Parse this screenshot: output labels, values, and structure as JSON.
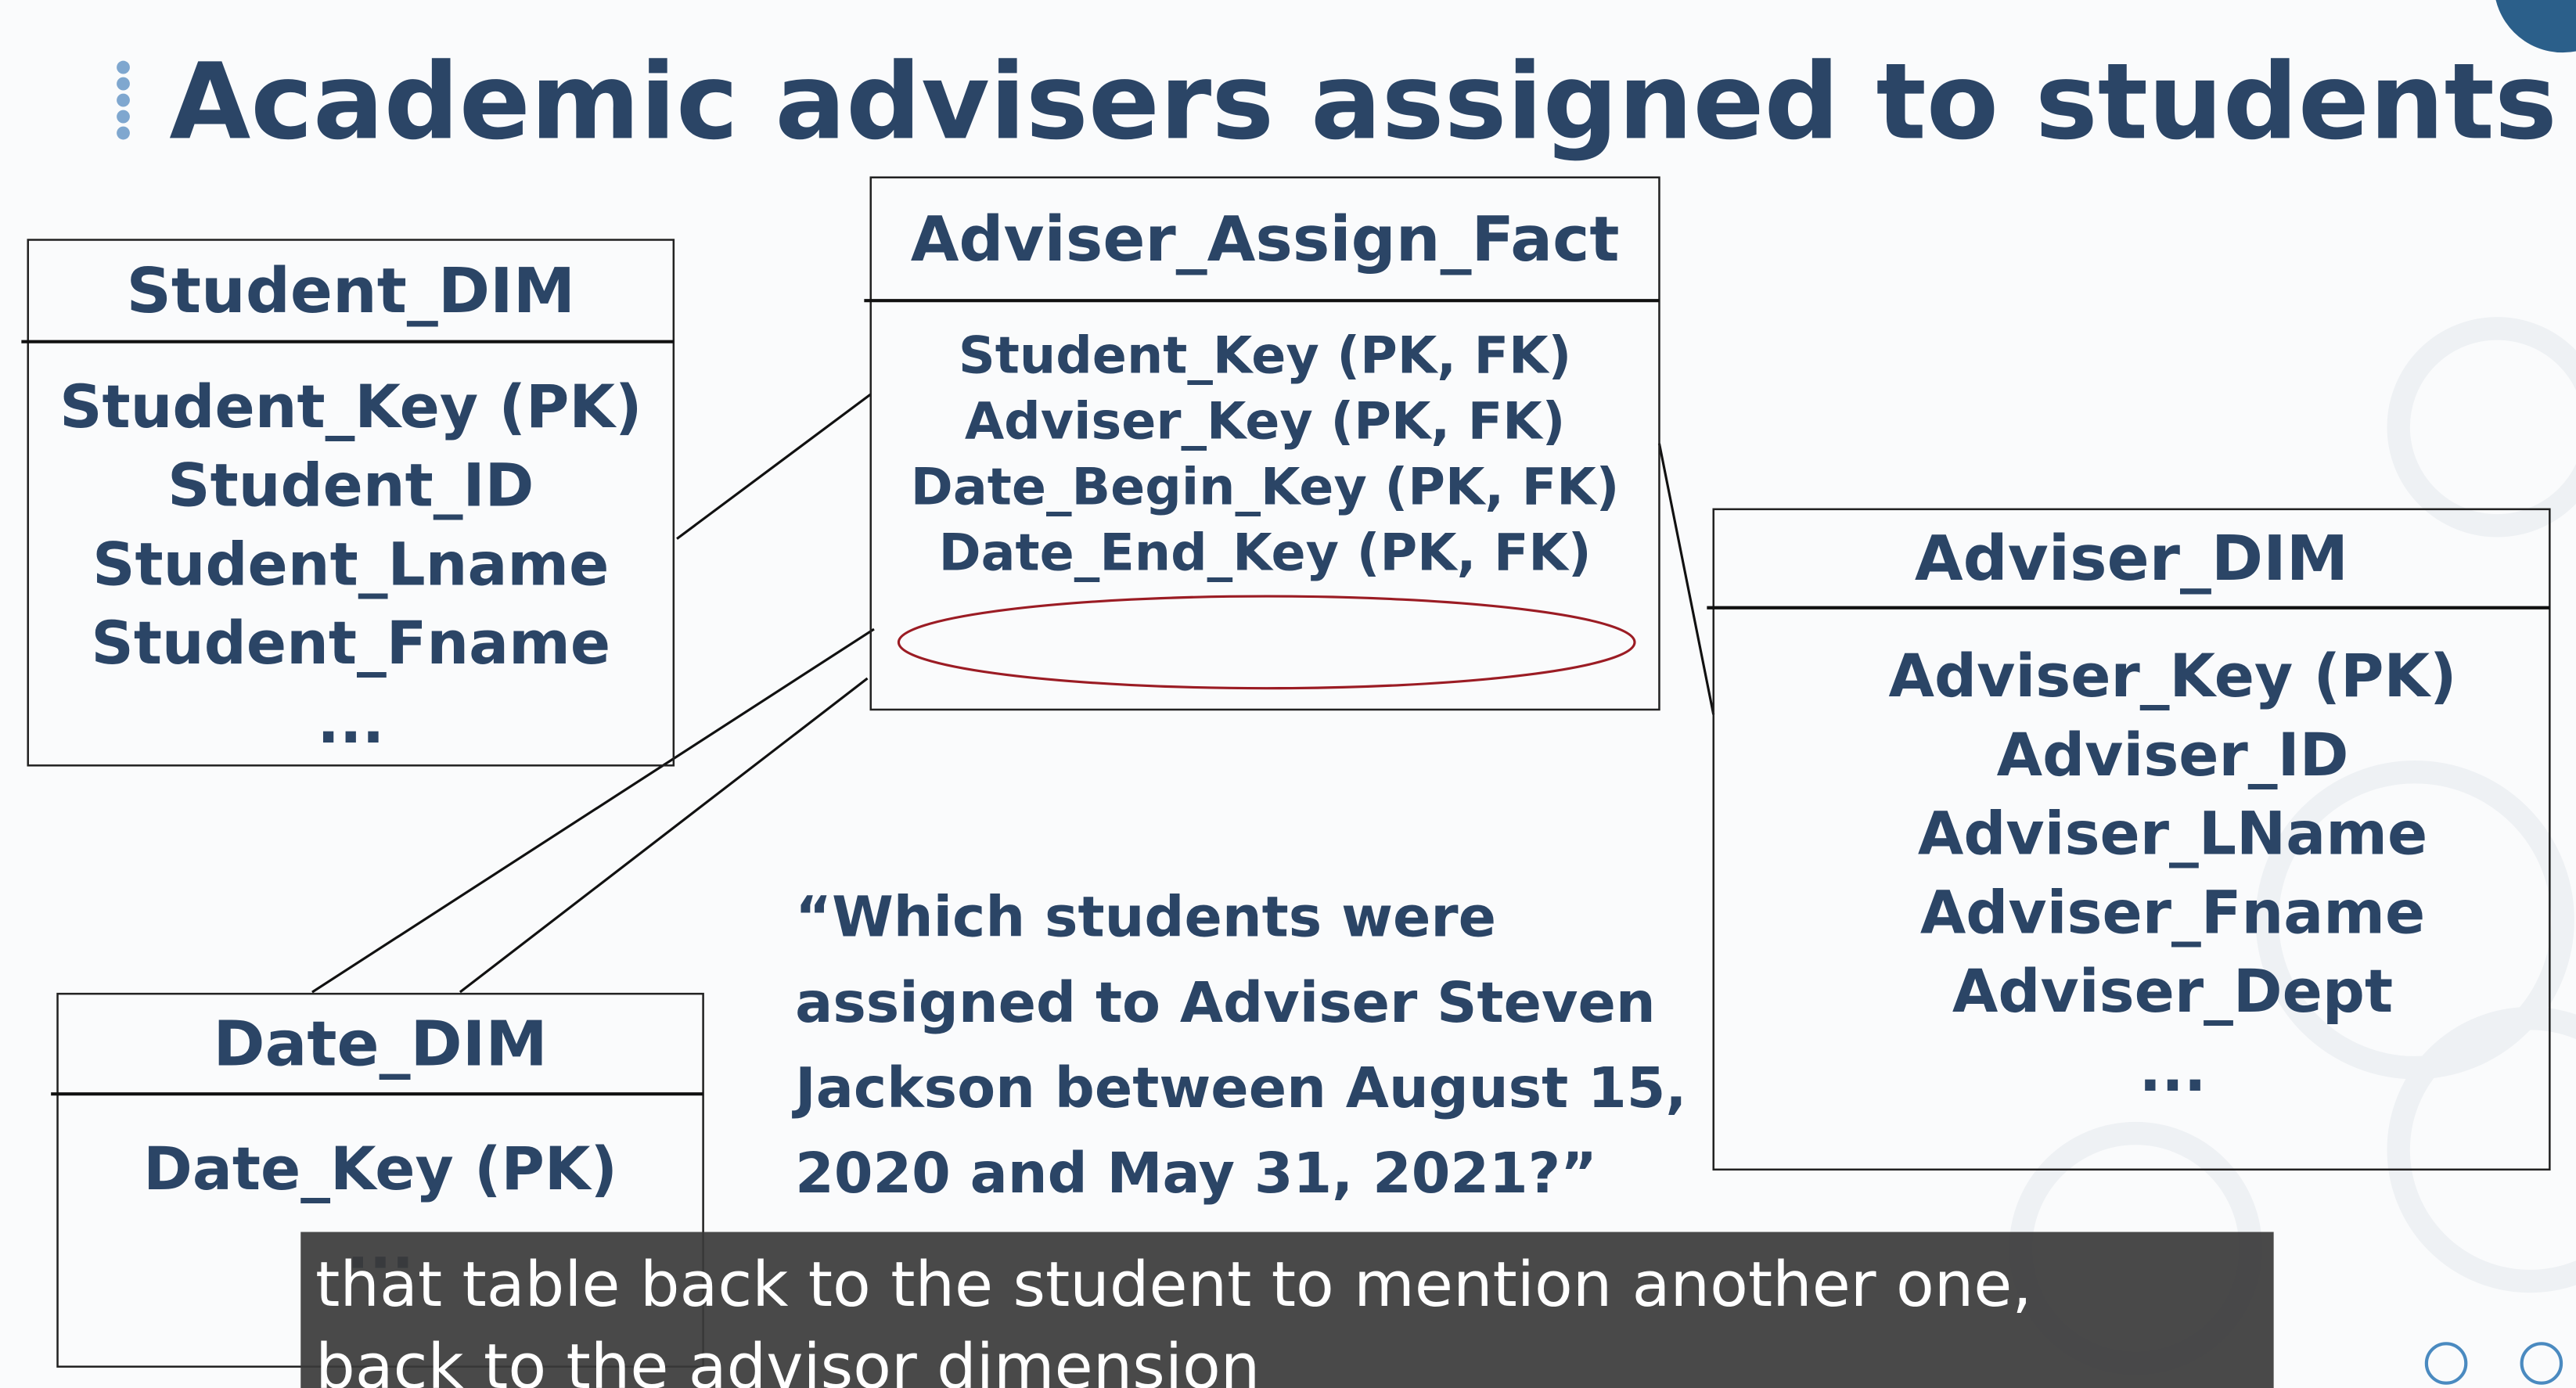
{
  "header": {
    "title": "Academic advisers assigned to students"
  },
  "tables": [
    {
      "name": "Student_DIM",
      "fields": [
        "Student_Key (PK)",
        "Student_ID",
        "Student_Lname",
        "Student_Fname",
        "..."
      ]
    },
    {
      "name": "Adviser_Assign_Fact",
      "fields": [
        "Student_Key (PK, FK)",
        "Adviser_Key (PK, FK)",
        "Date_Begin_Key (PK, FK)",
        "Date_End_Key (PK, FK)"
      ]
    },
    {
      "name": "Adviser_DIM",
      "fields": [
        "Adviser_Key (PK)",
        "Adviser_ID",
        "Adviser_LName",
        "Adviser_Fname",
        "Adviser_Dept",
        "..."
      ]
    },
    {
      "name": "Date_DIM",
      "fields": [
        "Date_Key (PK)",
        "..."
      ]
    }
  ],
  "question": [
    "“Which students were",
    "assigned to Adviser Steven",
    "Jackson between August 15,",
    "2020 and May 31, 2021?”"
  ],
  "caption": [
    "that table back to the student to mention another one,",
    "back to the advisor dimension"
  ]
}
